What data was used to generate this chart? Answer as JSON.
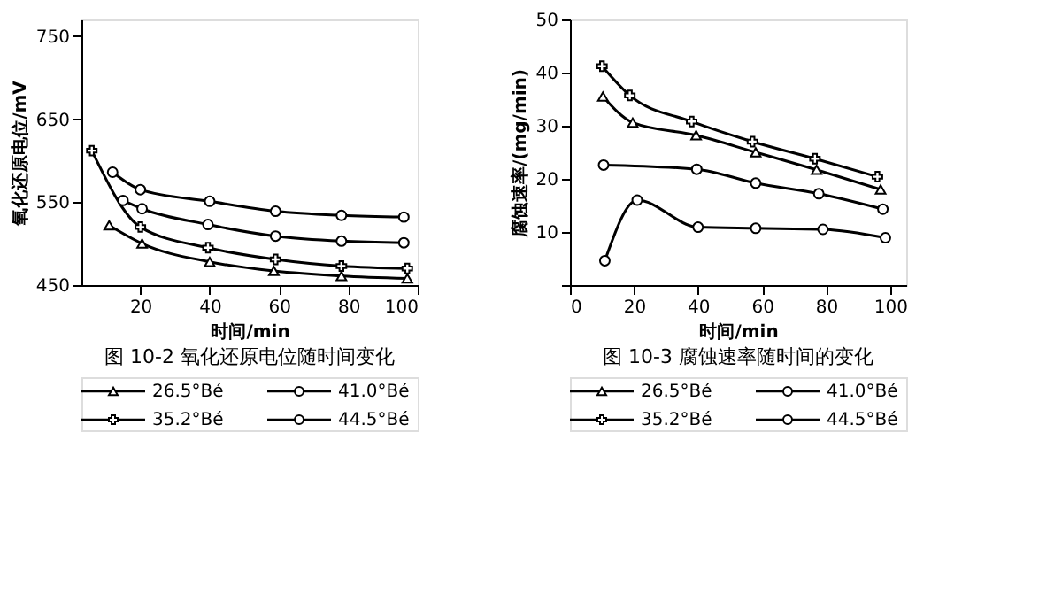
{
  "chart_data": [
    {
      "type": "line",
      "title": "图 10-2  氧化还原电位随时间变化",
      "xlabel": "时间/min",
      "ylabel": "氧化还原电位/mV",
      "xlim": [
        3,
        100
      ],
      "xticks": [
        20,
        40,
        60,
        80,
        100
      ],
      "ylim": [
        450,
        770
      ],
      "yticks": [
        450,
        550,
        650,
        750
      ],
      "grid": false,
      "legend": "bottom",
      "series": [
        {
          "name": "26.5°Bé",
          "color": "#000000",
          "marker": "triangle",
          "x": [
            11,
            20.5,
            40,
            58.5,
            78,
            97
          ],
          "values": [
            522,
            500,
            478,
            467,
            461,
            458
          ]
        },
        {
          "name": "41.0°Bé",
          "color": "#000000",
          "marker": "circle",
          "x": [
            15,
            20.5,
            39.5,
            59,
            78,
            96
          ],
          "values": [
            552,
            542,
            523,
            509,
            503,
            501
          ]
        },
        {
          "name": "35.2°Bé",
          "color": "#000000",
          "marker": "cross",
          "x": [
            6,
            20,
            39.5,
            59,
            78,
            97
          ],
          "values": [
            612,
            520,
            495,
            481,
            473,
            470
          ]
        },
        {
          "name": "44.5°Bé",
          "color": "#000000",
          "marker": "circle",
          "x": [
            12,
            20,
            40,
            59,
            78,
            96
          ],
          "values": [
            586,
            565,
            551,
            539,
            534,
            532
          ]
        }
      ]
    },
    {
      "type": "line",
      "title": "图 10-3  腐蚀速率随时间的变化",
      "xlabel": "时间/min",
      "ylabel": "腐蚀速率/(mg/min)",
      "xlim": [
        0,
        105
      ],
      "xticks": [
        0,
        20,
        40,
        60,
        80,
        100
      ],
      "ylim": [
        0,
        50
      ],
      "yticks": [
        {
          "value": 0,
          "label": null
        },
        10,
        20,
        30,
        40,
        50
      ],
      "grid": false,
      "legend": "bottom",
      "series": [
        {
          "name": "26.5°Bé",
          "color": "#000000",
          "marker": "triangle",
          "x": [
            10.3,
            19.6,
            39.4,
            58,
            77,
            97
          ],
          "values": [
            35.5,
            30.6,
            28.2,
            25,
            21.7,
            18
          ]
        },
        {
          "name": "41.0°Bé",
          "color": "#000000",
          "marker": "circle",
          "x": [
            10.5,
            39.6,
            58,
            77.7,
            97.7
          ],
          "values": [
            22.6,
            21.8,
            19.2,
            17.2,
            14.3
          ]
        },
        {
          "name": "35.2°Bé",
          "color": "#000000",
          "marker": "cross",
          "x": [
            10,
            18.7,
            38,
            57,
            76.5,
            96
          ],
          "values": [
            41.2,
            35.7,
            30.8,
            27,
            23.8,
            20.4
          ]
        },
        {
          "name": "44.5°Bé",
          "color": "#000000",
          "marker": "circle",
          "x": [
            10.9,
            21,
            40,
            58,
            79,
            98.5
          ],
          "values": [
            4.6,
            16,
            10.9,
            10.7,
            10.5,
            8.9
          ]
        }
      ]
    }
  ]
}
